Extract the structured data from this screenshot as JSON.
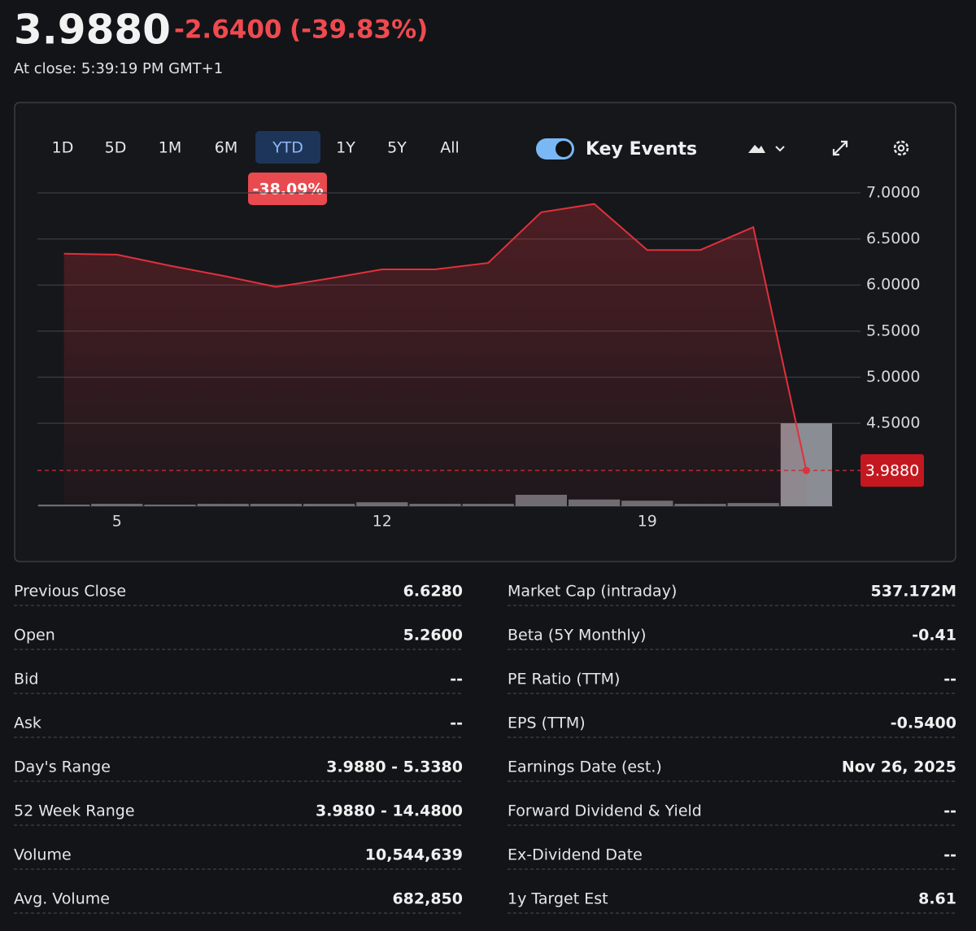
{
  "header": {
    "price": "3.9880",
    "change": "-2.6400",
    "change_percent": "(-39.83%)",
    "close_time": "At close: 5:39:19 PM GMT+1"
  },
  "toolbar": {
    "ranges": [
      "1D",
      "5D",
      "1M",
      "6M",
      "YTD",
      "1Y",
      "5Y",
      "All"
    ],
    "selected": "YTD",
    "range_change": "-38.09%",
    "key_events": "Key Events",
    "key_events_on": true
  },
  "chart_data": {
    "type": "line",
    "categories": [
      null,
      "5",
      null,
      null,
      null,
      null,
      "12",
      null,
      null,
      null,
      null,
      "19",
      null,
      null,
      null
    ],
    "values": [
      6.34,
      6.33,
      6.21,
      6.1,
      5.98,
      6.07,
      6.17,
      6.17,
      6.24,
      6.79,
      6.88,
      6.38,
      6.38,
      6.628,
      3.988
    ],
    "volumes": [
      200000,
      300000,
      200000,
      300000,
      300000,
      300000,
      500000,
      300000,
      300000,
      1450000,
      850000,
      700000,
      300000,
      400000,
      10544639
    ],
    "color": "#e0313b",
    "volume_color": "#8a8d93",
    "ylim": [
      3.6,
      7.0
    ],
    "yticks": [
      {
        "value": 4.5,
        "label": "4.5000"
      },
      {
        "value": 5,
        "label": "5.0000"
      },
      {
        "value": 5.5,
        "label": "5.5000"
      },
      {
        "value": 6,
        "label": "6.0000"
      },
      {
        "value": 6.5,
        "label": "6.5000"
      },
      {
        "value": 7,
        "label": "7.0000"
      }
    ],
    "grid": true,
    "last_label": "3.9880"
  },
  "stats": {
    "left": [
      [
        "Previous Close",
        "6.6280"
      ],
      [
        "Open",
        "5.2600"
      ],
      [
        "Bid",
        "--"
      ],
      [
        "Ask",
        "--"
      ],
      [
        "Day's Range",
        "3.9880 - 5.3380"
      ],
      [
        "52 Week Range",
        "3.9880 - 14.4800"
      ],
      [
        "Volume",
        "10,544,639"
      ],
      [
        "Avg. Volume",
        "682,850"
      ]
    ],
    "right": [
      [
        "Market Cap (intraday)",
        "537.172M"
      ],
      [
        "Beta (5Y Monthly)",
        "-0.41"
      ],
      [
        "PE Ratio (TTM)",
        "--"
      ],
      [
        "EPS (TTM)",
        "-0.5400"
      ],
      [
        "Earnings Date (est.)",
        "Nov 26, 2025"
      ],
      [
        "Forward Dividend & Yield",
        "--"
      ],
      [
        "Ex-Dividend Date",
        "--"
      ],
      [
        "1y Target Est",
        "8.61"
      ]
    ]
  }
}
